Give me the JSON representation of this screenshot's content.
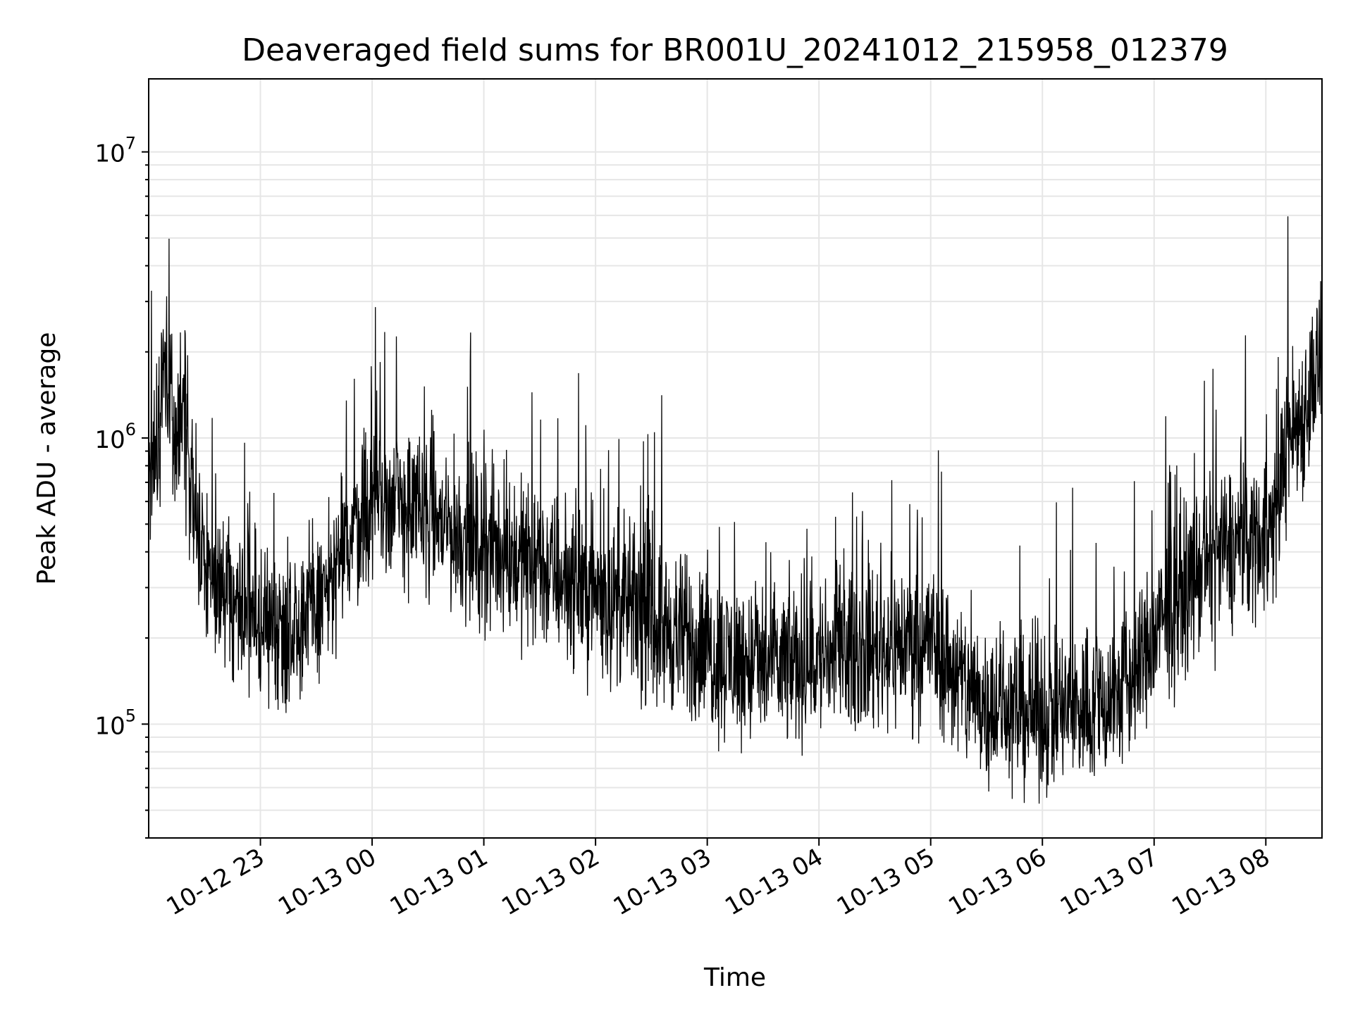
{
  "chart_data": {
    "type": "line",
    "title": "Deaveraged field sums for BR001U_20241012_215958_012379",
    "xlabel": "Time",
    "ylabel": "Peak ADU - average",
    "y_scale": "log",
    "ylim": [
      40000,
      18000000
    ],
    "xlim": [
      "2024-10-12T22:00:00",
      "2024-10-13T08:30:10"
    ],
    "grid": true,
    "x_ticks": [
      {
        "time": "2024-10-12T23:00:00",
        "label": "10-12 23"
      },
      {
        "time": "2024-10-13T00:00:00",
        "label": "10-13 00"
      },
      {
        "time": "2024-10-13T01:00:00",
        "label": "10-13 01"
      },
      {
        "time": "2024-10-13T02:00:00",
        "label": "10-13 02"
      },
      {
        "time": "2024-10-13T03:00:00",
        "label": "10-13 03"
      },
      {
        "time": "2024-10-13T04:00:00",
        "label": "10-13 04"
      },
      {
        "time": "2024-10-13T05:00:00",
        "label": "10-13 05"
      },
      {
        "time": "2024-10-13T06:00:00",
        "label": "10-13 06"
      },
      {
        "time": "2024-10-13T07:00:00",
        "label": "10-13 07"
      },
      {
        "time": "2024-10-13T08:00:00",
        "label": "10-13 08"
      }
    ],
    "y_ticks": [
      {
        "value": 100000,
        "base": "10",
        "exp": "5"
      },
      {
        "value": 1000000,
        "base": "10",
        "exp": "6"
      },
      {
        "value": 10000000,
        "base": "10",
        "exp": "7"
      }
    ],
    "series": [
      {
        "color": "#000000",
        "x": [
          "2024-10-12T22:00:00",
          "2024-10-12T22:02:30",
          "2024-10-12T22:05:00",
          "2024-10-12T22:07:30",
          "2024-10-12T22:10:00",
          "2024-10-12T22:12:30",
          "2024-10-12T22:15:00",
          "2024-10-12T22:20:00",
          "2024-10-12T22:25:00",
          "2024-10-12T22:30:00",
          "2024-10-12T22:35:00",
          "2024-10-12T22:40:00",
          "2024-10-12T22:45:00",
          "2024-10-12T22:50:00",
          "2024-10-12T22:55:00",
          "2024-10-12T23:00:00",
          "2024-10-12T23:05:00",
          "2024-10-12T23:10:00",
          "2024-10-12T23:15:00",
          "2024-10-12T23:20:00",
          "2024-10-12T23:25:00",
          "2024-10-12T23:30:00",
          "2024-10-12T23:35:00",
          "2024-10-12T23:40:00",
          "2024-10-12T23:45:00",
          "2024-10-12T23:50:00",
          "2024-10-12T23:55:00",
          "2024-10-13T00:00:00",
          "2024-10-13T00:05:00",
          "2024-10-13T00:10:00",
          "2024-10-13T00:15:00",
          "2024-10-13T00:20:00",
          "2024-10-13T00:25:00",
          "2024-10-13T00:30:00",
          "2024-10-13T00:35:00",
          "2024-10-13T00:40:00",
          "2024-10-13T00:45:00",
          "2024-10-13T00:50:00",
          "2024-10-13T00:55:00",
          "2024-10-13T01:00:00",
          "2024-10-13T01:10:00",
          "2024-10-13T01:20:00",
          "2024-10-13T01:30:00",
          "2024-10-13T01:40:00",
          "2024-10-13T01:50:00",
          "2024-10-13T02:00:00",
          "2024-10-13T02:10:00",
          "2024-10-13T02:20:00",
          "2024-10-13T02:30:00",
          "2024-10-13T02:40:00",
          "2024-10-13T02:50:00",
          "2024-10-13T03:00:00",
          "2024-10-13T03:10:00",
          "2024-10-13T03:20:00",
          "2024-10-13T03:30:00",
          "2024-10-13T03:40:00",
          "2024-10-13T03:50:00",
          "2024-10-13T04:00:00",
          "2024-10-13T04:10:00",
          "2024-10-13T04:20:00",
          "2024-10-13T04:30:00",
          "2024-10-13T04:40:00",
          "2024-10-13T04:50:00",
          "2024-10-13T05:00:00",
          "2024-10-13T05:10:00",
          "2024-10-13T05:20:00",
          "2024-10-13T05:30:00",
          "2024-10-13T05:40:00",
          "2024-10-13T05:50:00",
          "2024-10-13T06:00:00",
          "2024-10-13T06:10:00",
          "2024-10-13T06:20:00",
          "2024-10-13T06:30:00",
          "2024-10-13T06:40:00",
          "2024-10-13T06:50:00",
          "2024-10-13T07:00:00",
          "2024-10-13T07:10:00",
          "2024-10-13T07:20:00",
          "2024-10-13T07:30:00",
          "2024-10-13T07:40:00",
          "2024-10-13T07:50:00",
          "2024-10-13T08:00:00",
          "2024-10-13T08:05:00",
          "2024-10-13T08:10:00",
          "2024-10-13T08:15:00",
          "2024-10-13T08:20:00",
          "2024-10-13T08:25:00",
          "2024-10-13T08:30:00"
        ],
        "y": [
          900000,
          750000,
          1050000,
          2000000,
          1400000,
          1100000,
          1150000,
          1050000,
          500000,
          380000,
          320000,
          300000,
          280000,
          260000,
          240000,
          230000,
          220000,
          215000,
          220000,
          230000,
          240000,
          260000,
          290000,
          330000,
          400000,
          480000,
          550000,
          600000,
          620000,
          600000,
          580000,
          560000,
          550000,
          530000,
          510000,
          490000,
          470000,
          450000,
          430000,
          420000,
          400000,
          380000,
          350000,
          330000,
          310000,
          290000,
          270000,
          250000,
          230000,
          210000,
          195000,
          180000,
          170000,
          165000,
          160000,
          160000,
          165000,
          170000,
          175000,
          180000,
          185000,
          190000,
          195000,
          200000,
          160000,
          130000,
          120000,
          115000,
          112000,
          110000,
          112000,
          115000,
          118000,
          125000,
          150000,
          200000,
          260000,
          320000,
          370000,
          410000,
          440000,
          460000,
          500000,
          900000,
          1100000,
          1200000,
          1600000,
          1900000
        ]
      }
    ]
  }
}
